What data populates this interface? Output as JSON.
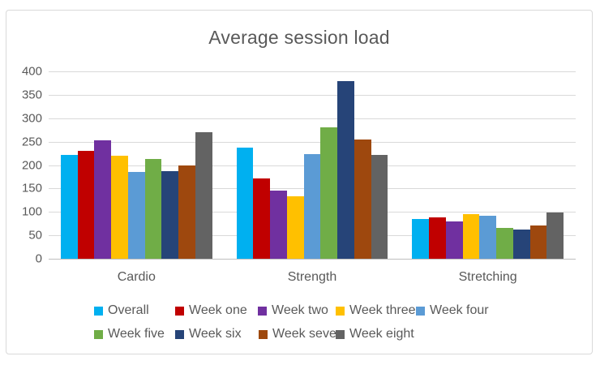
{
  "title": "Average session load",
  "text_color": "#595959",
  "gridline_color": "#d9d9d9",
  "axis_line_color": "#bfbfbf",
  "chart_data": {
    "type": "bar",
    "title": "Average session load",
    "categories": [
      "Cardio",
      "Strength",
      "Stretching"
    ],
    "series": [
      {
        "name": "Overall",
        "color": "#00B0F0",
        "values": [
          222,
          237,
          85
        ]
      },
      {
        "name": "Week one",
        "color": "#C00000",
        "values": [
          231,
          172,
          89
        ]
      },
      {
        "name": "Week two",
        "color": "#7030A0",
        "values": [
          253,
          145,
          80
        ]
      },
      {
        "name": "Week three",
        "color": "#FFC000",
        "values": [
          220,
          134,
          95
        ]
      },
      {
        "name": "Week four",
        "color": "#5B9BD5",
        "values": [
          185,
          224,
          92
        ]
      },
      {
        "name": "Week five",
        "color": "#70AD47",
        "values": [
          213,
          280,
          66
        ]
      },
      {
        "name": "Week six",
        "color": "#264478",
        "values": [
          187,
          380,
          62
        ]
      },
      {
        "name": "Week seven",
        "color": "#9E480E",
        "values": [
          200,
          254,
          71
        ]
      },
      {
        "name": "Week eight",
        "color": "#636363",
        "values": [
          271,
          222,
          99
        ]
      }
    ],
    "y_axis": {
      "min": 0,
      "max": 400,
      "step": 50,
      "ticks": [
        0,
        50,
        100,
        150,
        200,
        250,
        300,
        350,
        400
      ]
    },
    "xlabel": "",
    "ylabel": "",
    "grid": true,
    "legend_position": "bottom",
    "legend_rows": [
      [
        "Overall",
        "Week one",
        "Week two",
        "Week three",
        "Week four"
      ],
      [
        "Week five",
        "Week six",
        "Week seven",
        "Week eight"
      ]
    ]
  }
}
